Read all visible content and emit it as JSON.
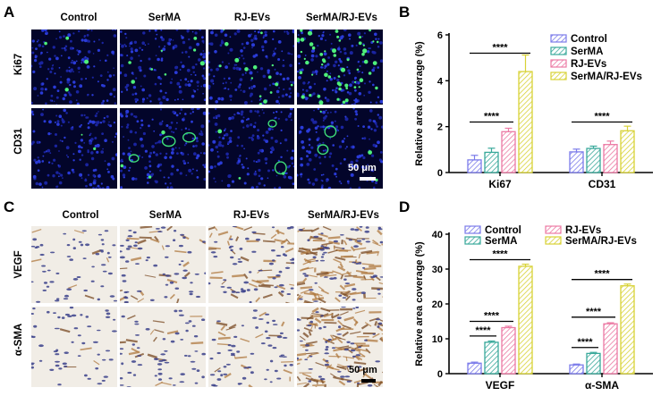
{
  "panels": {
    "A": {
      "letter": "A",
      "columns": [
        "Control",
        "SerMA",
        "RJ-EVs",
        "SerMA/RJ-EVs"
      ],
      "rows": [
        "Ki67",
        "CD31"
      ],
      "scale_label": "50 μm"
    },
    "C": {
      "letter": "C",
      "columns": [
        "Control",
        "SerMA",
        "RJ-EVs",
        "SerMA/RJ-EVs"
      ],
      "rows": [
        "VEGF",
        "α-SMA"
      ],
      "scale_label": "50 μm"
    },
    "B": {
      "letter": "B"
    },
    "D": {
      "letter": "D"
    }
  },
  "chart_data": [
    {
      "panel": "B",
      "type": "bar",
      "categories": [
        "Ki67",
        "CD31"
      ],
      "ylabel": "Relative  area coverage (%)",
      "ylim": [
        0,
        6
      ],
      "yticks": [
        0,
        2,
        4,
        6
      ],
      "legend": "top-right",
      "series": [
        {
          "name": "Control",
          "values": [
            0.55,
            0.9
          ],
          "errors": [
            0.2,
            0.12
          ],
          "color": "#7b7bea"
        },
        {
          "name": "SerMA",
          "values": [
            0.88,
            1.05
          ],
          "errors": [
            0.18,
            0.1
          ],
          "color": "#3aa99b"
        },
        {
          "name": "RJ-EVs",
          "values": [
            1.78,
            1.22
          ],
          "errors": [
            0.15,
            0.15
          ],
          "color": "#ec7aa4"
        },
        {
          "name": "SerMA/RJ-EVs",
          "values": [
            4.4,
            1.82
          ],
          "errors": [
            0.72,
            0.2
          ],
          "color": "#d8d236"
        }
      ],
      "significance": [
        {
          "category": 0,
          "from": 0,
          "to": 3,
          "y": 5.2,
          "label": "****"
        },
        {
          "category": 0,
          "from": 0,
          "to": 2,
          "y": 2.2,
          "label": "****"
        },
        {
          "category": 1,
          "from": 0,
          "to": 3,
          "y": 2.2,
          "label": "****"
        }
      ]
    },
    {
      "panel": "D",
      "type": "bar",
      "categories": [
        "VEGF",
        "α-SMA"
      ],
      "ylabel": "Relative  area coverage (%)",
      "ylim": [
        0,
        40
      ],
      "yticks": [
        0,
        10,
        20,
        30,
        40
      ],
      "legend": "top",
      "series": [
        {
          "name": "Control",
          "values": [
            3.0,
            2.5
          ],
          "errors": [
            0.3,
            0.25
          ],
          "color": "#7b7bea"
        },
        {
          "name": "SerMA",
          "values": [
            9.0,
            5.8
          ],
          "errors": [
            0.35,
            0.3
          ],
          "color": "#3aa99b"
        },
        {
          "name": "RJ-EVs",
          "values": [
            13.2,
            14.3
          ],
          "errors": [
            0.4,
            0.3
          ],
          "color": "#ec7aa4"
        },
        {
          "name": "SerMA/RJ-EVs",
          "values": [
            30.8,
            25.2
          ],
          "errors": [
            0.6,
            0.5
          ],
          "color": "#d8d236"
        }
      ],
      "significance": [
        {
          "category": 0,
          "from": 0,
          "to": 3,
          "y": 32.7,
          "label": "****"
        },
        {
          "category": 0,
          "from": 0,
          "to": 2,
          "y": 15.0,
          "label": "****"
        },
        {
          "category": 0,
          "from": 0,
          "to": 1,
          "y": 10.8,
          "label": "****"
        },
        {
          "category": 1,
          "from": 0,
          "to": 3,
          "y": 27.0,
          "label": "****"
        },
        {
          "category": 1,
          "from": 0,
          "to": 2,
          "y": 16.2,
          "label": "****"
        },
        {
          "category": 1,
          "from": 0,
          "to": 1,
          "y": 7.5,
          "label": "****"
        }
      ]
    }
  ]
}
